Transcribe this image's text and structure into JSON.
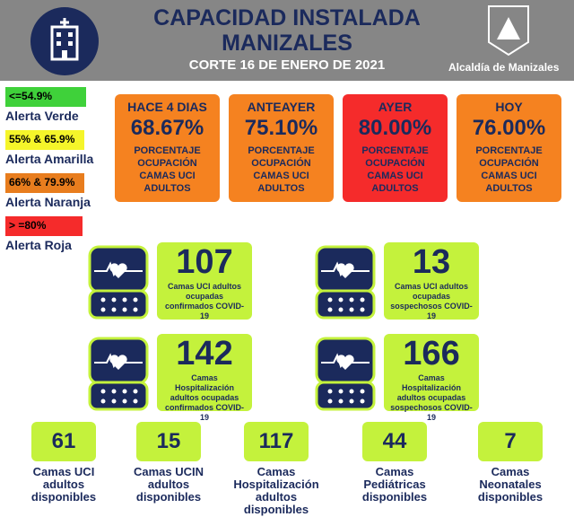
{
  "header": {
    "title_line1": "CAPACIDAD INSTALADA",
    "title_line2": "MANIZALES",
    "subtitle": "CORTE 16 DE ENERO DE 2021",
    "logo_text": "Alcaldía de Manizales"
  },
  "legend": [
    {
      "range": "<=54.9%",
      "label": "Alerta Verde",
      "color": "#3fd13a"
    },
    {
      "range": "55% & 65.9%",
      "label": "Alerta Amarilla",
      "color": "#f5f52a"
    },
    {
      "range": "66% & 79.9%",
      "label": "Alerta Naranja",
      "color": "#e87d1e"
    },
    {
      "range": "> =80%",
      "label": "Alerta Roja",
      "color": "#f52b2b"
    }
  ],
  "cards": [
    {
      "heading": "HACE 4 DIAS",
      "value": "68.67%",
      "description": "PORCENTAJE OCUPACIÓN CAMAS UCI ADULTOS",
      "color": "#f58220"
    },
    {
      "heading": "ANTEAYER",
      "value": "75.10%",
      "description": "PORCENTAJE OCUPACIÓN CAMAS UCI ADULTOS",
      "color": "#f58220"
    },
    {
      "heading": "AYER",
      "value": "80.00%",
      "description": "PORCENTAJE OCUPACIÓN CAMAS UCI ADULTOS",
      "color": "#f52b2b"
    },
    {
      "heading": "HOY",
      "value": "76.00%",
      "description": "PORCENTAJE OCUPACIÓN CAMAS UCI ADULTOS",
      "color": "#f58220"
    }
  ],
  "occupied": [
    {
      "value": 107,
      "label": "Camas UCI adultos ocupadas confirmados COVID-19"
    },
    {
      "value": 13,
      "label": "Camas UCI adultos ocupadas sospechosos COVID-19"
    },
    {
      "value": 142,
      "label": "Camas Hospitalización adultos ocupadas confirmados COVID-19"
    },
    {
      "value": 166,
      "label": "Camas Hospitalización adultos ocupadas sospechosos COVID-19"
    }
  ],
  "available": [
    {
      "value": 61,
      "label": "Camas UCI adultos disponibles"
    },
    {
      "value": 15,
      "label": "Camas UCIN adultos disponibles"
    },
    {
      "value": 117,
      "label": "Camas Hospitalización adultos disponibles"
    },
    {
      "value": 44,
      "label": "Camas Pediátricas disponibles"
    },
    {
      "value": 7,
      "label": "Camas Neonatales disponibles"
    }
  ]
}
